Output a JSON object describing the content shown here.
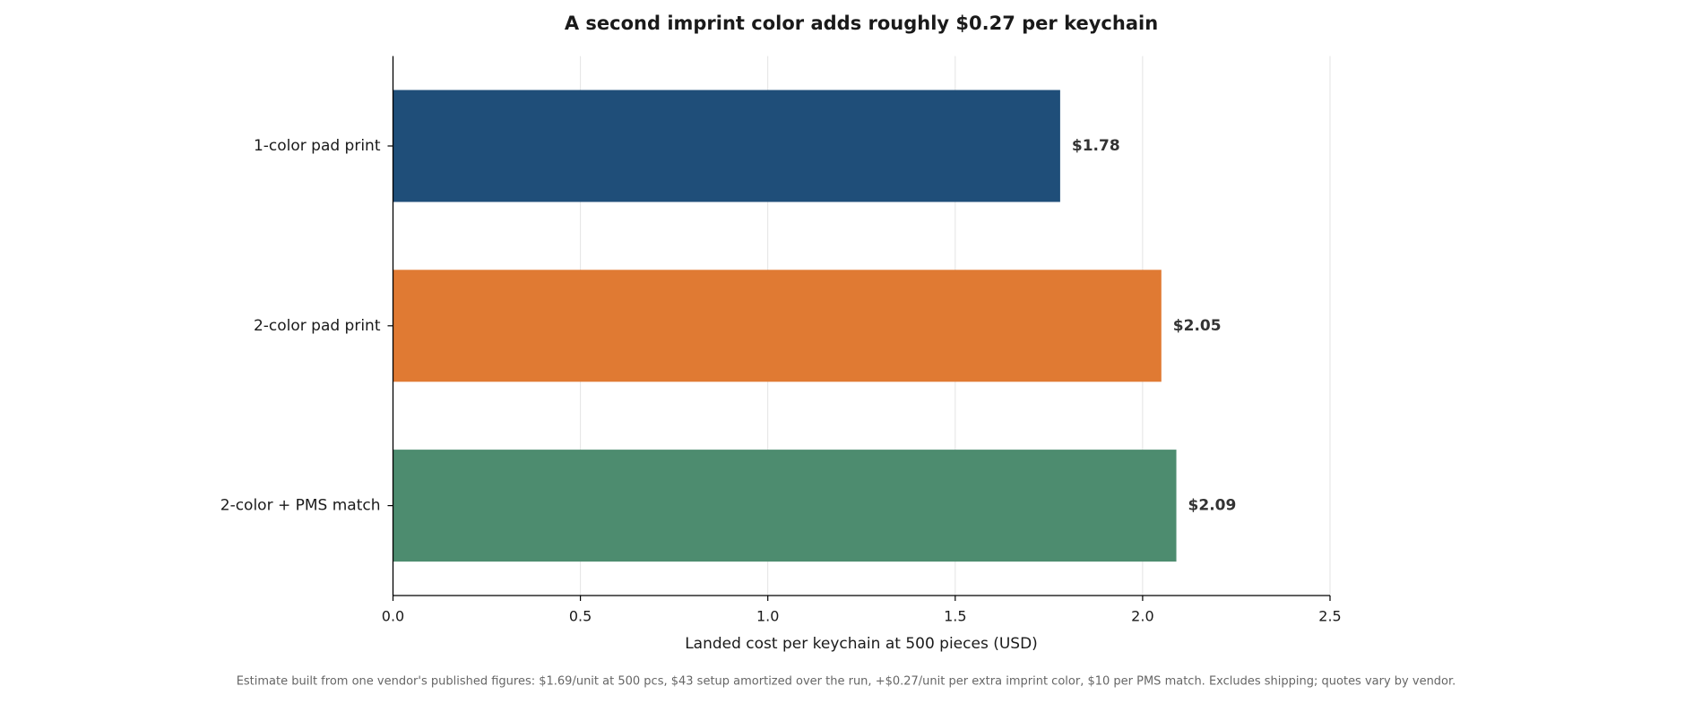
{
  "chart_data": {
    "type": "bar",
    "orientation": "horizontal",
    "title": "A second imprint color adds roughly $0.27 per keychain",
    "xlabel": "Landed cost per keychain at 500 pieces (USD)",
    "footnote": "Estimate built from one vendor's published figures: $1.69/unit at 500 pcs, $43 setup amortized over the run, +$0.27/unit per extra imprint color, $10 per PMS match. Excludes shipping; quotes vary by vendor.",
    "categories": [
      "1-color pad print",
      "2-color pad print",
      "2-color + PMS match"
    ],
    "values": [
      1.78,
      2.05,
      2.09
    ],
    "value_labels": [
      "$1.78",
      "$2.05",
      "$2.09"
    ],
    "colors": [
      "#1f4e79",
      "#e07a33",
      "#4d8c6f"
    ],
    "xlim": [
      0,
      2.5
    ],
    "xticks": [
      {
        "value": 0,
        "label": "0.0"
      },
      0.5,
      {
        "value": 1,
        "label": "1.0"
      },
      1.5,
      {
        "value": 2,
        "label": "2.0"
      },
      2.5
    ],
    "grid": true
  }
}
